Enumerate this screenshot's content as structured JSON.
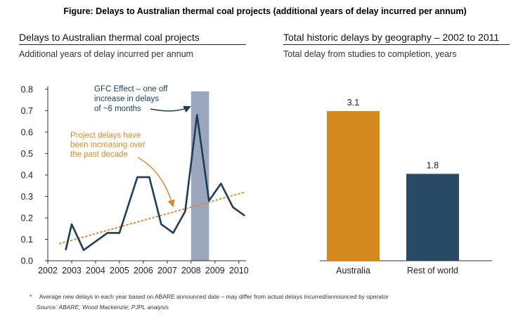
{
  "figure_title": "Figure:  Delays to Australian thermal coal projects (additional years of delay incurred per annum)",
  "footnote_marker": "*",
  "footnote": "Average new delays in each year based on ABARE announced date – may differ from actual delays incurred/announced by operator",
  "source": "Source:  ABARE; Wood Mackenzie; PJPL analysis",
  "colors": {
    "line": "#1d3d58",
    "trend": "#d88a2a",
    "highlight": "#9aa6bb",
    "bar_australia": "#d4891e",
    "bar_rest": "#294a64",
    "annotation_blue": "#1d3d58",
    "annotation_orange": "#d88a2a"
  },
  "chart_data": [
    {
      "type": "line",
      "title": "Delays to Australian thermal coal projects",
      "subtitle": "Additional years of delay incurred per annum",
      "xlabel": "",
      "ylabel": "",
      "xlim": [
        2002,
        2010.3
      ],
      "ylim": [
        0,
        0.8
      ],
      "x_ticks": [
        "2002",
        "2003",
        "2004",
        "2005",
        "2006",
        "2007",
        "2008",
        "2009",
        "2010"
      ],
      "y_ticks": [
        "0.0",
        "0.1",
        "0.2",
        "0.3",
        "0.4",
        "0.5",
        "0.6",
        "0.7",
        "0.8"
      ],
      "grid": false,
      "series": [
        {
          "x": [
            2002.75,
            2003.0,
            2003.5,
            2004.5,
            2005.0,
            2005.75,
            2006.25,
            2006.75,
            2007.25,
            2007.75,
            2008.25,
            2008.75,
            2009.25,
            2009.75,
            2010.25
          ],
          "values": [
            0.05,
            0.17,
            0.05,
            0.13,
            0.13,
            0.39,
            0.39,
            0.17,
            0.13,
            0.23,
            0.68,
            0.28,
            0.36,
            0.25,
            0.21
          ]
        }
      ],
      "trend": {
        "x": [
          2002.5,
          2010.25
        ],
        "values": [
          0.08,
          0.32
        ]
      },
      "highlight_band": {
        "x": [
          2008,
          2008.75
        ]
      },
      "annotations": [
        {
          "lines": [
            "GFC Effect – one off",
            "increase in delays",
            "of ~6 months"
          ]
        },
        {
          "lines": [
            "Project delays have",
            "been increasing over",
            "the past decade"
          ]
        }
      ]
    },
    {
      "type": "bar",
      "title": "Total historic delays by geography – 2002 to 2011",
      "subtitle": "Total delay from studies to completion, years",
      "xlabel": "",
      "ylabel": "",
      "ylim": [
        0,
        3.8
      ],
      "categories": [
        "Australia",
        "Rest of world"
      ],
      "values": [
        3.1,
        1.8
      ],
      "data_labels": [
        "3.1",
        "1.8"
      ]
    }
  ]
}
